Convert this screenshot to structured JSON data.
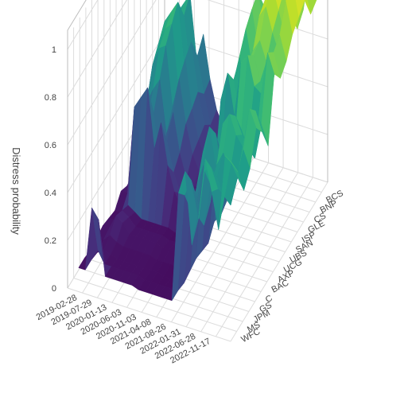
{
  "chart_data": {
    "type": "surface",
    "title": "",
    "xlabel": "",
    "ylabel": "",
    "zlabel": "Distress probability",
    "zlim": [
      0,
      1
    ],
    "z_ticks": [
      "0",
      "0.2",
      "0.4",
      "0.6",
      "0.8",
      "1"
    ],
    "x_ticks": [
      "2019-02-28",
      "2019-07-29",
      "2020-01-13",
      "2020-06-03",
      "2020-11-03",
      "2021-04-08",
      "2021-08-26",
      "2022-01-31",
      "2022-06-28",
      "2022-11-17"
    ],
    "y_ticks": [
      "BCS",
      "BNP",
      "CS",
      "GLE",
      "ISP",
      "SAN",
      "UBS",
      "UCG",
      "AXP",
      "BAC",
      "C",
      "GS",
      "JPM",
      "MS",
      "WFC"
    ],
    "colorscale": "Viridis",
    "colors": [
      "#440154",
      "#482878",
      "#3e4989",
      "#31688e",
      "#26828e",
      "#1f9e89",
      "#35b779",
      "#6ece58",
      "#b5de2b",
      "#fde725"
    ],
    "series": [
      {
        "y": "WFC",
        "values": [
          0.05,
          0.05,
          0.32,
          0.28,
          0.05,
          0.05,
          0.05,
          0.05,
          0.05,
          0.04,
          0.04,
          0.04,
          0.04,
          0.04,
          0.04,
          0.5,
          0.6,
          0.3,
          0.42,
          0.68,
          0.55,
          0.4,
          0.72,
          0.7
        ]
      },
      {
        "y": "MS",
        "values": [
          0.05,
          0.05,
          0.1,
          0.05,
          0.05,
          0.05,
          0.05,
          0.05,
          0.05,
          0.04,
          0.04,
          0.04,
          0.04,
          0.04,
          0.04,
          0.45,
          0.52,
          0.38,
          0.58,
          0.6,
          0.52,
          0.5,
          0.65,
          0.62
        ]
      },
      {
        "y": "JPM",
        "values": [
          0.04,
          0.04,
          0.06,
          0.05,
          0.04,
          0.04,
          0.04,
          0.04,
          0.04,
          0.04,
          0.04,
          0.03,
          0.03,
          0.03,
          0.03,
          0.35,
          0.4,
          0.3,
          0.48,
          0.52,
          0.45,
          0.42,
          0.55,
          0.5
        ]
      },
      {
        "y": "GS",
        "values": [
          0.05,
          0.05,
          0.08,
          0.06,
          0.05,
          0.05,
          0.05,
          0.05,
          0.05,
          0.04,
          0.04,
          0.04,
          0.04,
          0.04,
          0.04,
          0.4,
          0.5,
          0.35,
          0.52,
          0.58,
          0.5,
          0.48,
          0.62,
          0.55
        ]
      },
      {
        "y": "C",
        "values": [
          0.06,
          0.06,
          0.12,
          0.1,
          0.06,
          0.06,
          0.06,
          0.06,
          0.06,
          0.05,
          0.05,
          0.05,
          0.05,
          0.05,
          0.05,
          0.5,
          0.62,
          0.45,
          0.65,
          0.7,
          0.62,
          0.58,
          0.75,
          0.68
        ]
      },
      {
        "y": "BAC",
        "values": [
          0.05,
          0.05,
          0.1,
          0.08,
          0.05,
          0.05,
          0.05,
          0.05,
          0.05,
          0.04,
          0.04,
          0.04,
          0.04,
          0.04,
          0.04,
          0.45,
          0.55,
          0.4,
          0.6,
          0.65,
          0.58,
          0.55,
          0.7,
          0.62
        ]
      },
      {
        "y": "AXP",
        "values": [
          0.04,
          0.04,
          0.08,
          0.06,
          0.04,
          0.04,
          0.04,
          0.04,
          0.04,
          0.03,
          0.03,
          0.03,
          0.03,
          0.03,
          0.03,
          0.35,
          0.42,
          0.3,
          0.5,
          0.55,
          0.48,
          0.45,
          0.6,
          0.52
        ]
      },
      {
        "y": "UCG",
        "values": [
          0.08,
          0.08,
          0.45,
          0.5,
          0.55,
          0.3,
          0.42,
          0.25,
          0.15,
          0.1,
          0.1,
          0.08,
          0.08,
          0.08,
          0.08,
          0.6,
          0.72,
          0.55,
          0.78,
          0.82,
          0.7,
          0.68,
          0.86,
          0.78
        ]
      },
      {
        "y": "UBS",
        "values": [
          0.06,
          0.06,
          0.3,
          0.35,
          0.4,
          0.2,
          0.3,
          0.18,
          0.1,
          0.08,
          0.08,
          0.06,
          0.06,
          0.06,
          0.06,
          0.55,
          0.65,
          0.5,
          0.72,
          0.78,
          0.68,
          0.62,
          0.82,
          0.72
        ]
      },
      {
        "y": "SAN",
        "values": [
          0.07,
          0.07,
          0.38,
          0.45,
          0.5,
          0.28,
          0.38,
          0.22,
          0.12,
          0.1,
          0.1,
          0.08,
          0.08,
          0.08,
          0.08,
          0.58,
          0.7,
          0.52,
          0.75,
          0.8,
          0.72,
          0.65,
          0.85,
          0.75
        ]
      },
      {
        "y": "ISP",
        "values": [
          0.08,
          0.08,
          0.5,
          0.58,
          0.6,
          0.35,
          0.48,
          0.3,
          0.18,
          0.12,
          0.12,
          0.1,
          0.1,
          0.1,
          0.1,
          0.65,
          0.78,
          0.62,
          0.85,
          0.9,
          0.8,
          0.72,
          0.95,
          0.82
        ]
      },
      {
        "y": "GLE",
        "values": [
          0.08,
          0.08,
          0.55,
          0.62,
          0.65,
          0.38,
          0.52,
          0.32,
          0.2,
          0.12,
          0.12,
          0.1,
          0.1,
          0.1,
          0.1,
          0.68,
          0.82,
          0.65,
          0.88,
          0.95,
          0.85,
          0.75,
          1.0,
          0.85
        ]
      },
      {
        "y": "CS",
        "values": [
          0.1,
          0.1,
          0.6,
          0.65,
          0.7,
          0.42,
          0.55,
          0.35,
          0.22,
          0.15,
          0.15,
          0.12,
          0.12,
          0.12,
          0.12,
          0.72,
          0.85,
          0.7,
          0.92,
          1.0,
          0.9,
          0.8,
          1.0,
          0.88
        ]
      },
      {
        "y": "BNP",
        "values": [
          0.08,
          0.08,
          0.5,
          0.55,
          0.6,
          0.35,
          0.45,
          0.3,
          0.18,
          0.12,
          0.12,
          0.1,
          0.1,
          0.1,
          0.1,
          0.62,
          0.75,
          0.6,
          0.82,
          0.88,
          0.78,
          0.7,
          0.9,
          0.78
        ]
      },
      {
        "y": "BCS",
        "values": [
          0.1,
          0.1,
          0.55,
          0.6,
          0.65,
          0.38,
          0.5,
          0.32,
          0.2,
          0.14,
          0.14,
          0.12,
          0.12,
          0.12,
          0.12,
          0.66,
          0.8,
          0.64,
          0.86,
          0.92,
          0.82,
          0.74,
          0.94,
          0.8
        ]
      }
    ]
  }
}
